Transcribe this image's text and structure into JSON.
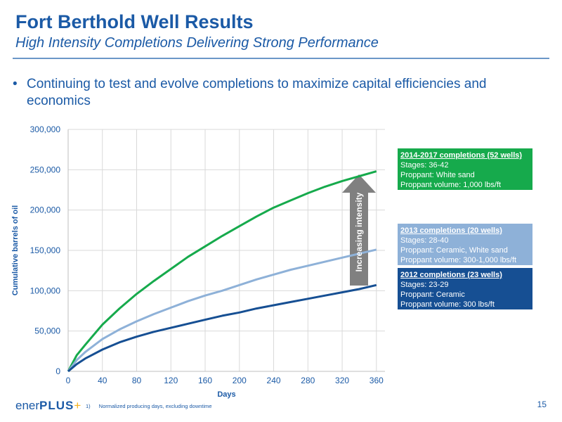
{
  "header": {
    "title": "Fort Berthold Well Results",
    "subtitle": "High Intensity Completions Delivering Strong Performance"
  },
  "bullet": {
    "marker": "•",
    "text": "Continuing to test and evolve completions to maximize capital efficiencies and economics"
  },
  "arrow": {
    "label": "Increasing intensity"
  },
  "boxes": {
    "b2014": {
      "heading": "2014-2017 completions (52 wells)",
      "stages": "Stages: 36-42",
      "proppant": "Proppant: White sand",
      "volume": "Proppant volume: 1,000 lbs/ft"
    },
    "b2013": {
      "heading": "2013 completions (20 wells)",
      "stages": "Stages: 28-40",
      "proppant": "Proppant: Ceramic, White sand",
      "volume": "Proppant volume: 300-1,000 lbs/ft"
    },
    "b2012": {
      "heading": "2012 completions (23 wells)",
      "stages": "Stages: 23-29",
      "proppant": "Proppant: Ceramic",
      "volume": "Proppant volume: 300 lbs/ft"
    }
  },
  "footer": {
    "logo_a": "ener",
    "logo_b": "PLUS",
    "logo_plus": "+",
    "footnote_mark": "1)",
    "footnote": "Normalized producing days, excluding downtime",
    "page": "15"
  },
  "colors": {
    "c2014": "#16aa4c",
    "c2013": "#8eb1d8",
    "c2012": "#164f93",
    "grid": "#d9d9d9",
    "axis_text": "#1b5aa6",
    "arrow": "#808080"
  },
  "chart_data": {
    "type": "line",
    "xlabel": "Days",
    "ylabel": "Cumulative barrels of oil",
    "xlim": [
      0,
      370
    ],
    "ylim": [
      0,
      300000
    ],
    "xticks": [
      0,
      40,
      80,
      120,
      160,
      200,
      240,
      280,
      320,
      360
    ],
    "xtick_labels": [
      "0",
      "40",
      "80",
      "120",
      "160",
      "200",
      "240",
      "280",
      "320",
      "360"
    ],
    "yticks": [
      0,
      50000,
      100000,
      150000,
      200000,
      250000,
      300000
    ],
    "ytick_labels": [
      "0",
      "50,000",
      "100,000",
      "150,000",
      "200,000",
      "250,000",
      "300,000"
    ],
    "grid": true,
    "x": [
      0,
      10,
      20,
      40,
      60,
      80,
      100,
      120,
      140,
      160,
      180,
      200,
      220,
      240,
      260,
      280,
      300,
      320,
      340,
      360
    ],
    "series": [
      {
        "name": "2014-2017 completions (52 wells)",
        "color": "#16aa4c",
        "values": [
          0,
          20000,
          33000,
          58000,
          78000,
          96000,
          112000,
          127000,
          142000,
          155000,
          168000,
          180000,
          192000,
          203000,
          212000,
          221000,
          229000,
          236000,
          242000,
          248000
        ]
      },
      {
        "name": "2013 completions (20 wells)",
        "color": "#8eb1d8",
        "values": [
          0,
          14000,
          24000,
          40000,
          52000,
          62000,
          71000,
          79000,
          87000,
          94000,
          100000,
          107000,
          114000,
          120000,
          126000,
          131000,
          136000,
          141000,
          146000,
          151000
        ]
      },
      {
        "name": "2012 completions (23 wells)",
        "color": "#164f93",
        "values": [
          0,
          9000,
          16000,
          27000,
          36000,
          43000,
          49000,
          54000,
          59000,
          64000,
          69000,
          73000,
          78000,
          82000,
          86000,
          90000,
          94000,
          98000,
          102000,
          107000
        ]
      }
    ]
  }
}
